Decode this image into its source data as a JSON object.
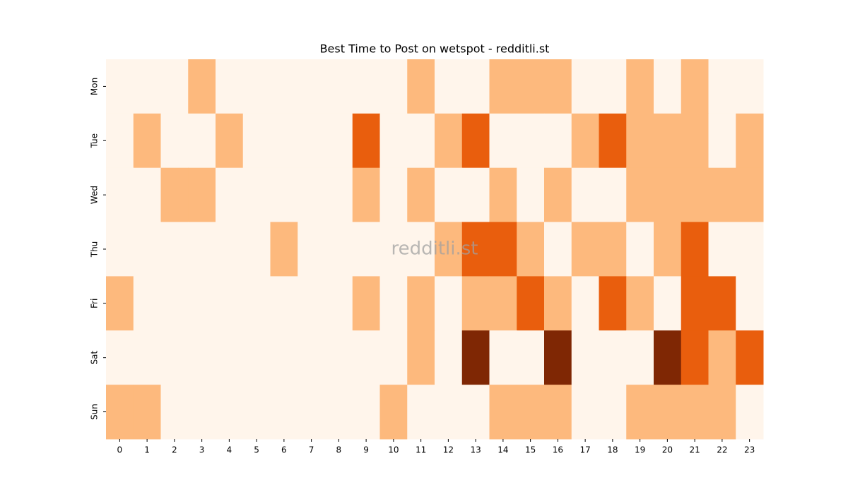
{
  "chart_data": {
    "type": "heatmap",
    "title": "Best Time to Post on wetspot - redditli.st",
    "watermark": "redditli.st",
    "x": [
      0,
      1,
      2,
      3,
      4,
      5,
      6,
      7,
      8,
      9,
      10,
      11,
      12,
      13,
      14,
      15,
      16,
      17,
      18,
      19,
      20,
      21,
      22,
      23
    ],
    "y": [
      "Mon",
      "Tue",
      "Wed",
      "Thu",
      "Fri",
      "Sat",
      "Sun"
    ],
    "colors": [
      "#fff5eb",
      "#fdb97d",
      "#e95e0d",
      "#7f2704"
    ],
    "values": [
      [
        0,
        0,
        0,
        1,
        0,
        0,
        0,
        0,
        0,
        0,
        0,
        1,
        0,
        0,
        1,
        1,
        1,
        0,
        0,
        1,
        0,
        1,
        0,
        0
      ],
      [
        0,
        1,
        0,
        0,
        1,
        0,
        0,
        0,
        0,
        2,
        0,
        0,
        1,
        2,
        0,
        0,
        0,
        1,
        2,
        1,
        1,
        1,
        0,
        1
      ],
      [
        0,
        0,
        1,
        1,
        0,
        0,
        0,
        0,
        0,
        1,
        0,
        1,
        0,
        0,
        1,
        0,
        1,
        0,
        0,
        1,
        1,
        1,
        1,
        1
      ],
      [
        0,
        0,
        0,
        0,
        0,
        0,
        1,
        0,
        0,
        0,
        0,
        0,
        1,
        2,
        2,
        1,
        0,
        1,
        1,
        0,
        1,
        2,
        0,
        0
      ],
      [
        1,
        0,
        0,
        0,
        0,
        0,
        0,
        0,
        0,
        1,
        0,
        1,
        0,
        1,
        1,
        2,
        1,
        0,
        2,
        1,
        0,
        2,
        2,
        0
      ],
      [
        0,
        0,
        0,
        0,
        0,
        0,
        0,
        0,
        0,
        0,
        0,
        1,
        0,
        3,
        0,
        0,
        3,
        0,
        0,
        0,
        3,
        2,
        1,
        2
      ],
      [
        1,
        1,
        0,
        0,
        0,
        0,
        0,
        0,
        0,
        0,
        1,
        0,
        0,
        0,
        1,
        1,
        1,
        0,
        0,
        1,
        1,
        1,
        1,
        0
      ]
    ]
  }
}
